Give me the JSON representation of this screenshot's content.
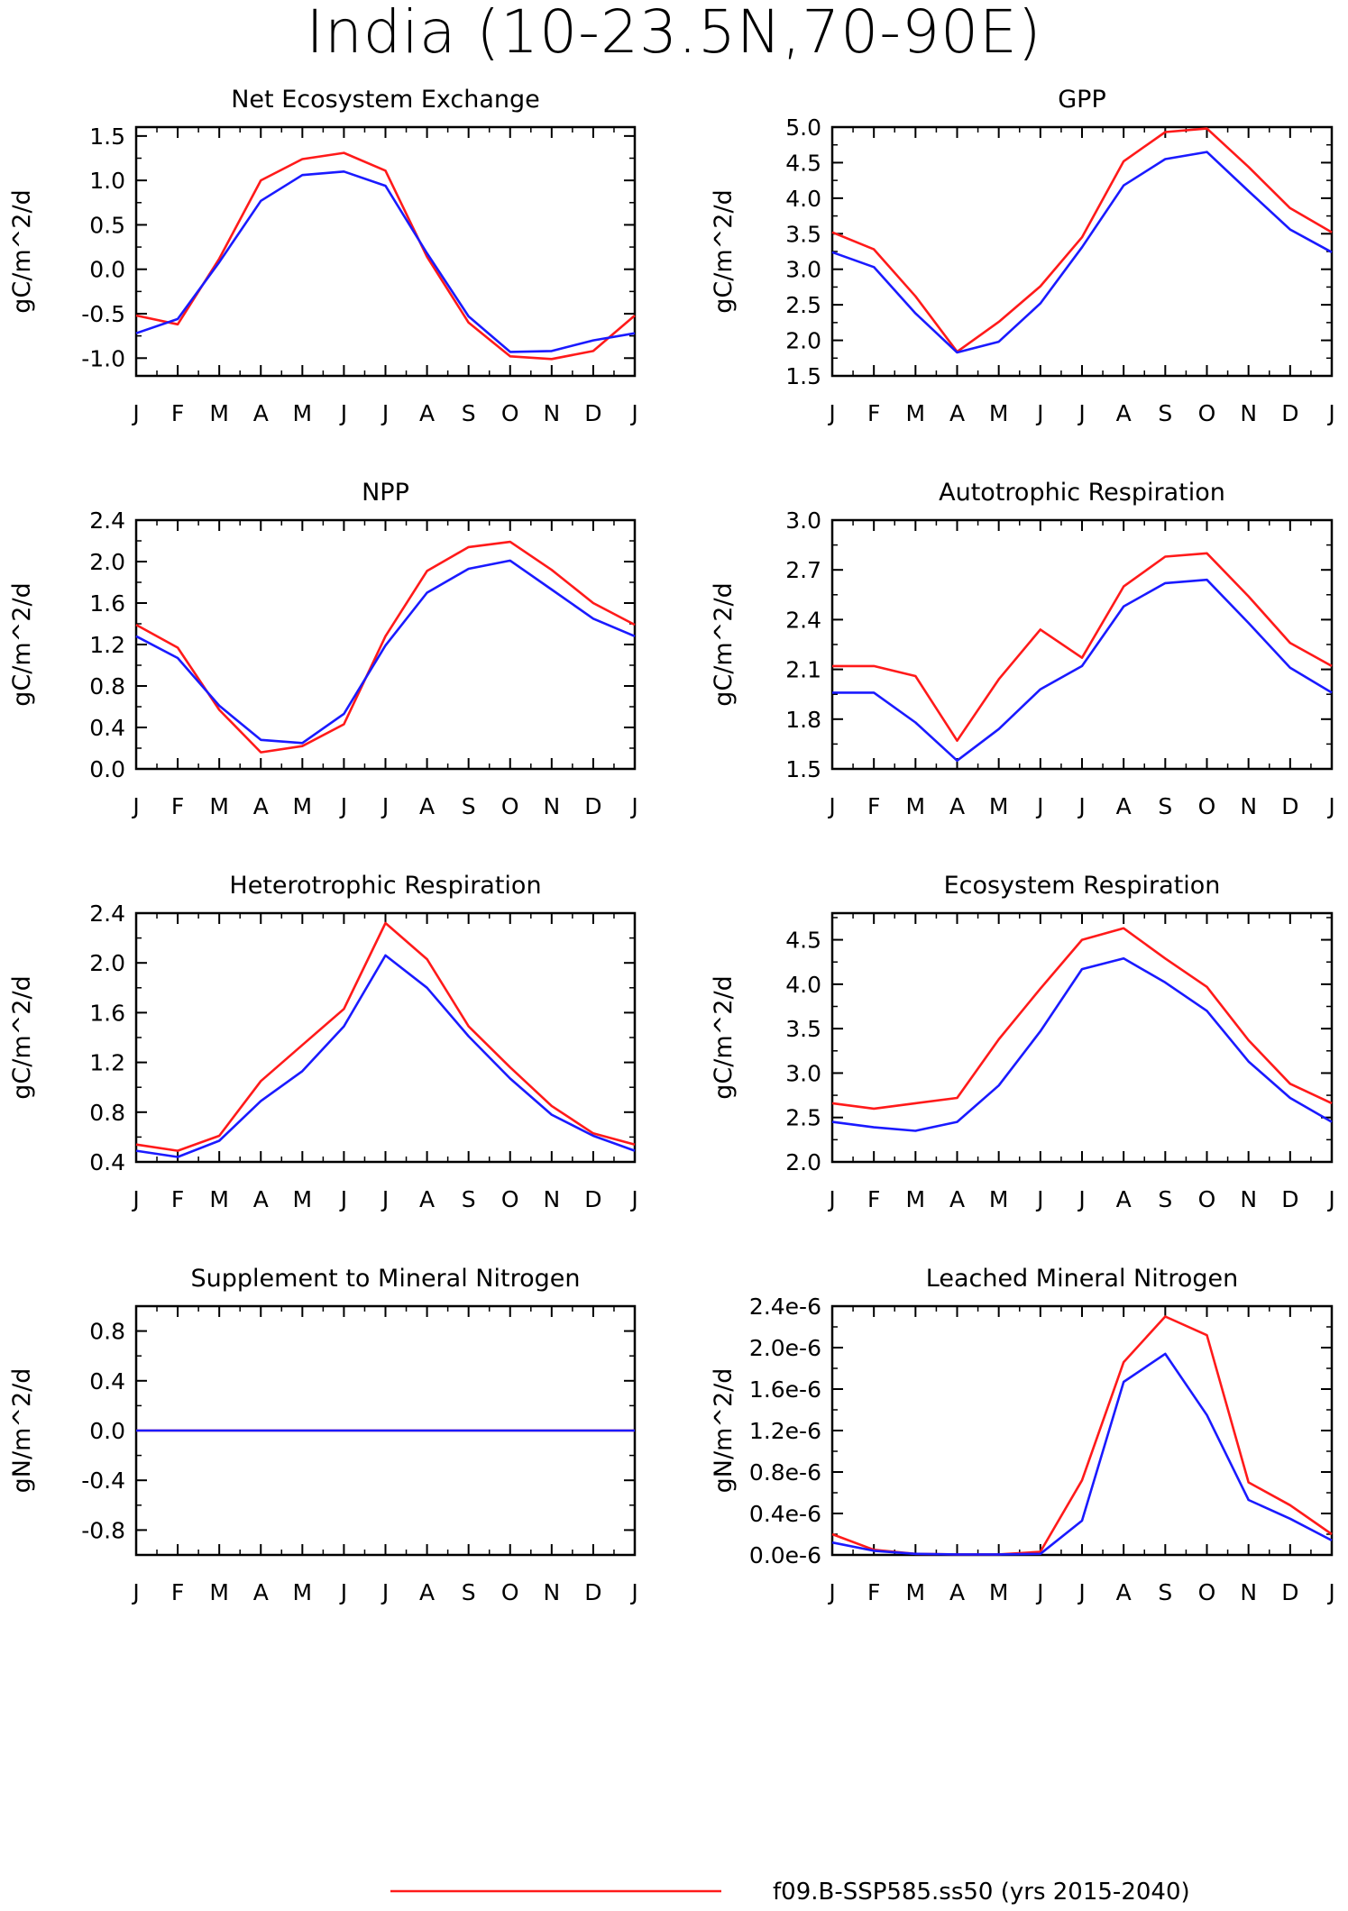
{
  "title": "India (10-23.5N,70-90E)",
  "month_labels": [
    "J",
    "F",
    "M",
    "A",
    "M",
    "J",
    "J",
    "A",
    "S",
    "O",
    "N",
    "D",
    "J"
  ],
  "series_colors": {
    "red": "#ff1a1a",
    "blue": "#1a1aff"
  },
  "legend": {
    "entries": [
      {
        "label": "f09.B-SSP585.ss50 (yrs 2015-2040)",
        "color": "#ff1a1a"
      }
    ]
  },
  "chart_data": [
    {
      "type": "line",
      "title": "Net Ecosystem Exchange",
      "ylabel": "gC/m^2/d",
      "ylim": [
        -1.2,
        1.6
      ],
      "yticks": [
        -1.0,
        -0.5,
        0.0,
        0.5,
        1.0,
        1.5
      ],
      "yticklabels": [
        "-1.0",
        "-0.5",
        "0.0",
        "0.5",
        "1.0",
        "1.5"
      ],
      "x": [
        "J",
        "F",
        "M",
        "A",
        "M",
        "J",
        "J",
        "A",
        "S",
        "O",
        "N",
        "D",
        "J"
      ],
      "series": [
        {
          "color": "#ff1a1a",
          "values": [
            -0.52,
            -0.62,
            0.12,
            1.0,
            1.24,
            1.31,
            1.11,
            0.14,
            -0.6,
            -0.98,
            -1.01,
            -0.92,
            -0.52
          ]
        },
        {
          "color": "#1a1aff",
          "values": [
            -0.72,
            -0.56,
            0.08,
            0.77,
            1.06,
            1.1,
            0.94,
            0.18,
            -0.53,
            -0.93,
            -0.92,
            -0.8,
            -0.72
          ]
        }
      ]
    },
    {
      "type": "line",
      "title": "GPP",
      "ylabel": "gC/m^2/d",
      "ylim": [
        1.5,
        5.0
      ],
      "yticks": [
        1.5,
        2.0,
        2.5,
        3.0,
        3.5,
        4.0,
        4.5,
        5.0
      ],
      "yticklabels": [
        "1.5",
        "2.0",
        "2.5",
        "3.0",
        "3.5",
        "4.0",
        "4.5",
        "5.0"
      ],
      "x": [
        "J",
        "F",
        "M",
        "A",
        "M",
        "J",
        "J",
        "A",
        "S",
        "O",
        "N",
        "D",
        "J"
      ],
      "series": [
        {
          "color": "#ff1a1a",
          "values": [
            3.52,
            3.28,
            2.62,
            1.84,
            2.26,
            2.76,
            3.45,
            4.52,
            4.93,
            4.98,
            4.44,
            3.86,
            3.52
          ]
        },
        {
          "color": "#1a1aff",
          "values": [
            3.24,
            3.03,
            2.38,
            1.83,
            1.98,
            2.52,
            3.31,
            4.18,
            4.55,
            4.65,
            4.1,
            3.56,
            3.24
          ]
        }
      ]
    },
    {
      "type": "line",
      "title": "NPP",
      "ylabel": "gC/m^2/d",
      "ylim": [
        0.0,
        2.4
      ],
      "yticks": [
        0.0,
        0.4,
        0.8,
        1.2,
        1.6,
        2.0,
        2.4
      ],
      "yticklabels": [
        "0.0",
        "0.4",
        "0.8",
        "1.2",
        "1.6",
        "2.0",
        "2.4"
      ],
      "x": [
        "J",
        "F",
        "M",
        "A",
        "M",
        "J",
        "J",
        "A",
        "S",
        "O",
        "N",
        "D",
        "J"
      ],
      "series": [
        {
          "color": "#ff1a1a",
          "values": [
            1.39,
            1.17,
            0.57,
            0.16,
            0.22,
            0.43,
            1.28,
            1.91,
            2.14,
            2.19,
            1.92,
            1.6,
            1.39
          ]
        },
        {
          "color": "#1a1aff",
          "values": [
            1.28,
            1.07,
            0.61,
            0.28,
            0.25,
            0.53,
            1.19,
            1.7,
            1.93,
            2.01,
            1.73,
            1.45,
            1.28
          ]
        }
      ]
    },
    {
      "type": "line",
      "title": "Autotrophic Respiration",
      "ylabel": "gC/m^2/d",
      "ylim": [
        1.5,
        3.0
      ],
      "yticks": [
        1.5,
        1.8,
        2.1,
        2.4,
        2.7,
        3.0
      ],
      "yticklabels": [
        "1.5",
        "1.8",
        "2.1",
        "2.4",
        "2.7",
        "3.0"
      ],
      "x": [
        "J",
        "F",
        "M",
        "A",
        "M",
        "J",
        "J",
        "A",
        "S",
        "O",
        "N",
        "D",
        "J"
      ],
      "series": [
        {
          "color": "#ff1a1a",
          "values": [
            2.12,
            2.12,
            2.06,
            1.67,
            2.04,
            2.34,
            2.17,
            2.6,
            2.78,
            2.8,
            2.54,
            2.26,
            2.12
          ]
        },
        {
          "color": "#1a1aff",
          "values": [
            1.96,
            1.96,
            1.78,
            1.55,
            1.74,
            1.98,
            2.12,
            2.48,
            2.62,
            2.64,
            2.38,
            2.11,
            1.96
          ]
        }
      ]
    },
    {
      "type": "line",
      "title": "Heterotrophic Respiration",
      "ylabel": "gC/m^2/d",
      "ylim": [
        0.4,
        2.4
      ],
      "yticks": [
        0.4,
        0.8,
        1.2,
        1.6,
        2.0,
        2.4
      ],
      "yticklabels": [
        "0.4",
        "0.8",
        "1.2",
        "1.6",
        "2.0",
        "2.4"
      ],
      "x": [
        "J",
        "F",
        "M",
        "A",
        "M",
        "J",
        "J",
        "A",
        "S",
        "O",
        "N",
        "D",
        "J"
      ],
      "series": [
        {
          "color": "#ff1a1a",
          "values": [
            0.54,
            0.49,
            0.61,
            1.05,
            1.34,
            1.63,
            2.32,
            2.03,
            1.49,
            1.16,
            0.85,
            0.63,
            0.54
          ]
        },
        {
          "color": "#1a1aff",
          "values": [
            0.49,
            0.44,
            0.57,
            0.89,
            1.13,
            1.49,
            2.06,
            1.8,
            1.41,
            1.07,
            0.78,
            0.61,
            0.49
          ]
        }
      ]
    },
    {
      "type": "line",
      "title": "Ecosystem Respiration",
      "ylabel": "gC/m^2/d",
      "ylim": [
        2.0,
        4.8
      ],
      "yticks": [
        2.0,
        2.5,
        3.0,
        3.5,
        4.0,
        4.5
      ],
      "yticklabels": [
        "2.0",
        "2.5",
        "3.0",
        "3.5",
        "4.0",
        "4.5"
      ],
      "x": [
        "J",
        "F",
        "M",
        "A",
        "M",
        "J",
        "J",
        "A",
        "S",
        "O",
        "N",
        "D",
        "J"
      ],
      "series": [
        {
          "color": "#ff1a1a",
          "values": [
            2.66,
            2.6,
            2.66,
            2.72,
            3.38,
            3.95,
            4.5,
            4.63,
            4.29,
            3.97,
            3.37,
            2.88,
            2.66
          ]
        },
        {
          "color": "#1a1aff",
          "values": [
            2.45,
            2.39,
            2.35,
            2.45,
            2.86,
            3.47,
            4.17,
            4.29,
            4.02,
            3.7,
            3.13,
            2.72,
            2.45
          ]
        }
      ]
    },
    {
      "type": "line",
      "title": "Supplement to Mineral Nitrogen",
      "ylabel": "gN/m^2/d",
      "ylim": [
        -1.0,
        1.0
      ],
      "yticks": [
        -0.8,
        -0.4,
        0.0,
        0.4,
        0.8
      ],
      "yticklabels": [
        "-0.8",
        "-0.4",
        "0.0",
        "0.4",
        "0.8"
      ],
      "x": [
        "J",
        "F",
        "M",
        "A",
        "M",
        "J",
        "J",
        "A",
        "S",
        "O",
        "N",
        "D",
        "J"
      ],
      "series": [
        {
          "color": "#ff1a1a",
          "values": [
            0,
            0,
            0,
            0,
            0,
            0,
            0,
            0,
            0,
            0,
            0,
            0,
            0
          ]
        },
        {
          "color": "#1a1aff",
          "values": [
            0,
            0,
            0,
            0,
            0,
            0,
            0,
            0,
            0,
            0,
            0,
            0,
            0
          ]
        }
      ]
    },
    {
      "type": "line",
      "title": "Leached Mineral Nitrogen",
      "ylabel": "gN/m^2/d",
      "ylim": [
        0.0,
        2.4e-06
      ],
      "yticks": [
        0.0,
        4e-07,
        8e-07,
        1.2e-06,
        1.6e-06,
        2e-06,
        2.4e-06
      ],
      "yticklabels": [
        "0.0e-6",
        "0.4e-6",
        "0.8e-6",
        "1.2e-6",
        "1.6e-6",
        "2.0e-6",
        "2.4e-6"
      ],
      "x": [
        "J",
        "F",
        "M",
        "A",
        "M",
        "J",
        "J",
        "A",
        "S",
        "O",
        "N",
        "D",
        "J"
      ],
      "series": [
        {
          "color": "#ff1a1a",
          "values": [
            2e-07,
            5e-08,
            1e-08,
            5e-09,
            5e-09,
            3e-08,
            7.2e-07,
            1.86e-06,
            2.3e-06,
            2.12e-06,
            7e-07,
            4.8e-07,
            2e-07
          ]
        },
        {
          "color": "#1a1aff",
          "values": [
            1.2e-07,
            4e-08,
            1e-08,
            5e-09,
            5e-09,
            1e-08,
            3.3e-07,
            1.67e-06,
            1.94e-06,
            1.35e-06,
            5.3e-07,
            3.5e-07,
            1.4e-07
          ]
        }
      ]
    }
  ]
}
